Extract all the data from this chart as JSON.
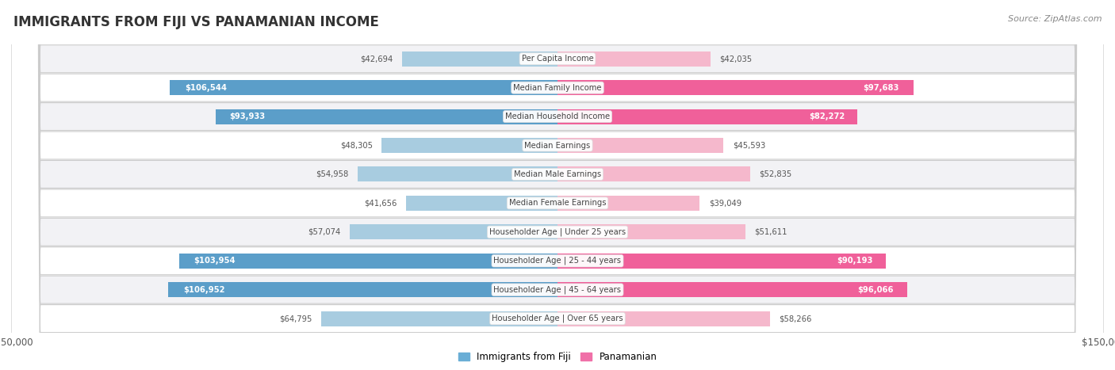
{
  "title": "IMMIGRANTS FROM FIJI VS PANAMANIAN INCOME",
  "source": "Source: ZipAtlas.com",
  "categories": [
    "Per Capita Income",
    "Median Family Income",
    "Median Household Income",
    "Median Earnings",
    "Median Male Earnings",
    "Median Female Earnings",
    "Householder Age | Under 25 years",
    "Householder Age | 25 - 44 years",
    "Householder Age | 45 - 64 years",
    "Householder Age | Over 65 years"
  ],
  "fiji_values": [
    42694,
    106544,
    93933,
    48305,
    54958,
    41656,
    57074,
    103954,
    106952,
    64795
  ],
  "panama_values": [
    42035,
    97683,
    82272,
    45593,
    52835,
    39049,
    51611,
    90193,
    96066,
    58266
  ],
  "fiji_labels": [
    "$42,694",
    "$106,544",
    "$93,933",
    "$48,305",
    "$54,958",
    "$41,656",
    "$57,074",
    "$103,954",
    "$106,952",
    "$64,795"
  ],
  "panama_labels": [
    "$42,035",
    "$97,683",
    "$82,272",
    "$45,593",
    "$52,835",
    "$39,049",
    "$51,611",
    "$90,193",
    "$96,066",
    "$58,266"
  ],
  "fiji_color_light": "#a8cce0",
  "fiji_color_dark": "#5b9ec9",
  "panama_color_light": "#f5b8cc",
  "panama_color_dark": "#f0609a",
  "max_value": 150000,
  "background_color": "#ffffff",
  "row_bg_odd": "#f2f2f5",
  "row_bg_even": "#ffffff",
  "bar_height": 0.52,
  "label_threshold": 70000,
  "legend_fiji": "Immigrants from Fiji",
  "legend_panama": "Panamanian",
  "fiji_legend_color": "#6aaed6",
  "panama_legend_color": "#f070a8"
}
